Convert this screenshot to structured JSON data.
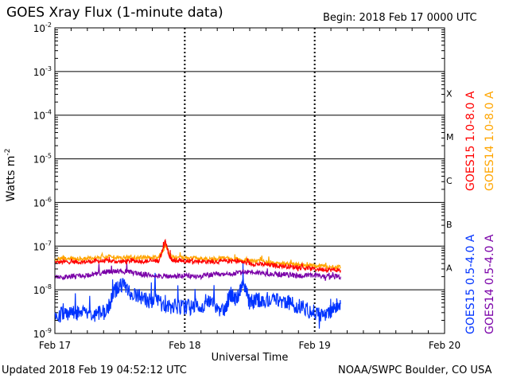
{
  "header": {
    "title": "GOES Xray Flux (1-minute data)",
    "begin": "Begin:  2018 Feb 17 0000 UTC"
  },
  "footer": {
    "updated": "Updated 2018 Feb 19 04:52:12 UTC",
    "credit": "NOAA/SWPC Boulder, CO USA"
  },
  "colors": {
    "goes15_long": "#ff0000",
    "goes14_long": "#ffa500",
    "goes15_short": "#0033ff",
    "goes14_short": "#7a00a8",
    "grid": "#000000"
  },
  "chart_data": {
    "type": "line",
    "title": "GOES Xray Flux (1-minute data)",
    "xlabel": "Universal Time",
    "ylabel": "Watts m",
    "ylabel_superscript": "-2",
    "yscale": "log",
    "ylim": [
      1e-09,
      0.01
    ],
    "xlim": [
      "2018-02-17T00:00",
      "2018-02-20T00:00"
    ],
    "grid": true,
    "x_ticks": [
      "Feb 17",
      "Feb 18",
      "Feb 19",
      "Feb 20"
    ],
    "y_ticks": [
      {
        "base": "10",
        "exp": "-9",
        "value": 1e-09
      },
      {
        "base": "10",
        "exp": "-8",
        "value": 1e-08
      },
      {
        "base": "10",
        "exp": "-7",
        "value": 1e-07
      },
      {
        "base": "10",
        "exp": "-6",
        "value": 1e-06
      },
      {
        "base": "10",
        "exp": "-5",
        "value": 1e-05
      },
      {
        "base": "10",
        "exp": "-4",
        "value": 0.0001
      },
      {
        "base": "10",
        "exp": "-3",
        "value": 0.001
      },
      {
        "base": "10",
        "exp": "-2",
        "value": 0.01
      }
    ],
    "flare_classes": [
      {
        "label": "A",
        "value": 1e-08
      },
      {
        "label": "B",
        "value": 1e-07
      },
      {
        "label": "C",
        "value": 1e-06
      },
      {
        "label": "M",
        "value": 1e-05
      },
      {
        "label": "X",
        "value": 0.0001
      }
    ],
    "series": [
      {
        "name": "GOES15 1.0-8.0 A",
        "color": "#ff0000",
        "x": [
          0,
          0.1,
          0.2,
          0.3,
          0.4,
          0.5,
          0.6,
          0.7,
          0.8,
          0.85,
          0.88,
          0.9,
          0.95,
          1.0,
          1.1,
          1.2,
          1.3,
          1.4,
          1.5,
          1.6,
          1.7,
          1.8,
          1.9,
          2.0,
          2.1,
          2.2
        ],
        "y": [
          4.2e-08,
          4.4e-08,
          4.3e-08,
          4.5e-08,
          4.6e-08,
          4.4e-08,
          4.6e-08,
          4.5e-08,
          4.6e-08,
          1.3e-07,
          6e-08,
          4.8e-08,
          4.7e-08,
          4.6e-08,
          4.5e-08,
          4.4e-08,
          4.5e-08,
          4.6e-08,
          4e-08,
          3.8e-08,
          3.6e-08,
          3.4e-08,
          3.2e-08,
          3e-08,
          2.9e-08,
          2.8e-08
        ]
      },
      {
        "name": "GOES14 1.0-8.0 A",
        "color": "#ffa500",
        "x": [
          0,
          0.1,
          0.2,
          0.3,
          0.4,
          0.5,
          0.6,
          0.7,
          0.8,
          0.85,
          0.9,
          1.0,
          1.1,
          1.2,
          1.3,
          1.4,
          1.5,
          1.6,
          1.7,
          1.8,
          1.9,
          2.0,
          2.1,
          2.2
        ],
        "y": [
          5e-08,
          5.2e-08,
          5.1e-08,
          5.4e-08,
          5.8e-08,
          5.3e-08,
          5.6e-08,
          5.4e-08,
          5.5e-08,
          1e-07,
          5.6e-08,
          5.4e-08,
          5.2e-08,
          5e-08,
          5.3e-08,
          5.1e-08,
          4.6e-08,
          4.4e-08,
          4.1e-08,
          3.9e-08,
          3.7e-08,
          3.5e-08,
          3.4e-08,
          3.3e-08
        ]
      },
      {
        "name": "GOES15 0.5-4.0 A",
        "color": "#0033ff",
        "x": [
          0,
          0.1,
          0.2,
          0.3,
          0.4,
          0.45,
          0.5,
          0.6,
          0.7,
          0.8,
          0.9,
          1.0,
          1.1,
          1.2,
          1.3,
          1.35,
          1.4,
          1.45,
          1.5,
          1.55,
          1.6,
          1.7,
          1.8,
          1.9,
          2.0,
          2.1,
          2.15,
          2.2
        ],
        "y": [
          2.5e-09,
          2.8e-09,
          3e-09,
          2.7e-09,
          3.2e-09,
          8e-09,
          1.4e-08,
          8e-09,
          6e-09,
          5e-09,
          4e-09,
          4e-09,
          4e-09,
          5e-09,
          3e-09,
          8e-09,
          6e-09,
          1.4e-08,
          5e-09,
          6e-09,
          6e-09,
          6e-09,
          5e-09,
          4e-09,
          3e-09,
          2.5e-09,
          4e-09,
          5e-09
        ]
      },
      {
        "name": "GOES14 0.5-4.0 A",
        "color": "#7a00a8",
        "x": [
          0,
          0.1,
          0.2,
          0.3,
          0.4,
          0.5,
          0.6,
          0.7,
          0.8,
          0.9,
          1.0,
          1.1,
          1.2,
          1.3,
          1.4,
          1.5,
          1.6,
          1.7,
          1.8,
          1.9,
          2.0,
          2.1,
          2.2
        ],
        "y": [
          1.9e-08,
          2e-08,
          2.1e-08,
          2.3e-08,
          2.6e-08,
          2.7e-08,
          2.5e-08,
          2.2e-08,
          2.1e-08,
          2e-08,
          2.1e-08,
          2e-08,
          2.2e-08,
          2.2e-08,
          2.4e-08,
          2.6e-08,
          2.4e-08,
          2.3e-08,
          2.2e-08,
          2.1e-08,
          2.1e-08,
          2e-08,
          2e-08
        ]
      }
    ],
    "legend": [
      {
        "label": "GOES15 1.0-8.0 A",
        "color": "#ff0000"
      },
      {
        "label": "GOES14 1.0-8.0 A",
        "color": "#ffa500"
      },
      {
        "label": "GOES15 0.5-4.0 A",
        "color": "#0033ff"
      },
      {
        "label": "GOES14 0.5-4.0 A",
        "color": "#7a00a8"
      }
    ],
    "legend_placement": "right"
  }
}
